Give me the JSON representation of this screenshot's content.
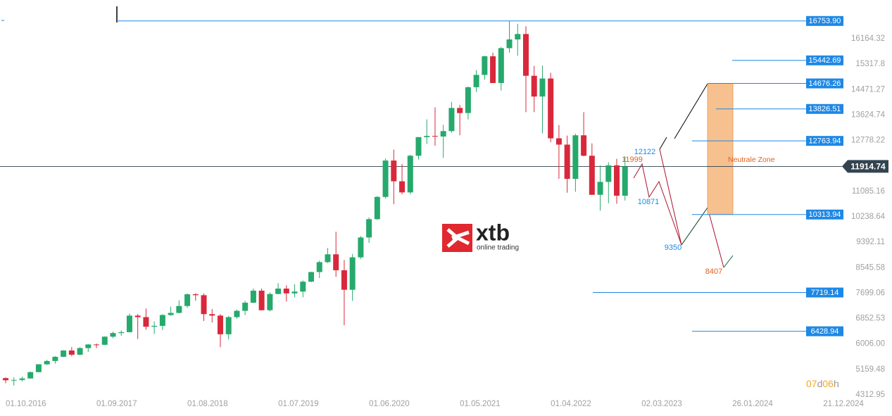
{
  "chart_data": {
    "type": "candlestick",
    "open": [
      4870,
      4800,
      4810,
      4860,
      5070,
      5330,
      5440,
      5580,
      5790,
      5650,
      5870,
      5990,
      5980,
      6250,
      6370,
      6400,
      6950,
      6900,
      6580,
      6610,
      6970,
      7040,
      7270,
      7660,
      7630,
      7000,
      6950,
      6330,
      6900,
      7110,
      7380,
      7780,
      7130,
      7670,
      7850,
      7690,
      7750,
      8080,
      8400,
      8730,
      8990,
      8460,
      7810,
      8890,
      9550,
      10160,
      10900,
      12110,
      11420,
      11050,
      12270,
      12890,
      12930,
      12910,
      13090,
      13860,
      13690,
      14550,
      14960,
      15580,
      14690,
      15850,
      16140,
      16320,
      14930,
      14240,
      14840,
      12850,
      12640,
      11500,
      12950,
      12270,
      10970,
      11400,
      11950,
      10940
    ],
    "high": [
      4900,
      4900,
      4920,
      5090,
      5340,
      5480,
      5600,
      5800,
      5900,
      5900,
      6000,
      6020,
      6260,
      6420,
      6460,
      7020,
      7000,
      7190,
      6760,
      7000,
      7250,
      7460,
      7690,
      7700,
      7690,
      7170,
      7000,
      6940,
      7150,
      7440,
      7850,
      7850,
      7720,
      8030,
      7960,
      7990,
      8120,
      8410,
      8780,
      9200,
      9740,
      8800,
      9000,
      9600,
      10220,
      10930,
      12180,
      12470,
      12000,
      12300,
      12890,
      13480,
      13880,
      13300,
      14060,
      13960,
      14570,
      15120,
      15600,
      15700,
      15890,
      16760,
      16660,
      16580,
      15260,
      15270,
      15030,
      13290,
      12940,
      13000,
      13720,
      12680,
      11950,
      12050,
      12170,
      12250
    ],
    "low": [
      4700,
      4620,
      4760,
      4850,
      5060,
      5310,
      5350,
      5570,
      5600,
      5630,
      5740,
      5870,
      5970,
      6200,
      6280,
      6390,
      6170,
      6480,
      6340,
      6470,
      6940,
      7020,
      7210,
      7450,
      6770,
      6720,
      5900,
      6160,
      6850,
      6970,
      7370,
      7120,
      7090,
      7660,
      7420,
      7560,
      7560,
      8060,
      8200,
      8700,
      8240,
      6630,
      7440,
      8830,
      9370,
      10130,
      10850,
      10660,
      10990,
      10990,
      12140,
      12660,
      12600,
      12200,
      13040,
      12950,
      13480,
      14390,
      14800,
      14690,
      14440,
      15700,
      15600,
      13720,
      13720,
      13020,
      12720,
      11500,
      11040,
      11070,
      12250,
      10970,
      10440,
      10690,
      10670,
      10780
    ],
    "close": [
      4800,
      4810,
      4860,
      5070,
      5330,
      5440,
      5580,
      5790,
      5650,
      5870,
      5990,
      5980,
      6250,
      6370,
      6400,
      6950,
      6900,
      6580,
      6610,
      6970,
      7040,
      7270,
      7660,
      7630,
      7000,
      6950,
      6330,
      6900,
      7110,
      7380,
      7780,
      7130,
      7670,
      7850,
      7690,
      7750,
      8080,
      8400,
      8730,
      8990,
      8460,
      7810,
      8890,
      9550,
      10160,
      10900,
      12110,
      11420,
      11050,
      12270,
      12890,
      12930,
      12910,
      13090,
      13860,
      13690,
      14550,
      14960,
      15580,
      14690,
      15850,
      16140,
      16320,
      14930,
      14240,
      14840,
      12850,
      12640,
      11500,
      12950,
      12270,
      10970,
      11400,
      11950,
      10940,
      11910
    ],
    "up_color": "#26a96c",
    "down_color": "#d9283b",
    "ylim": [
      3610,
      17452
    ],
    "yticks": [
      16164.32,
      15317.8,
      14471.27,
      13624.74,
      12778.22,
      11085.16,
      10238.64,
      9392.11,
      8545.58,
      7699.06,
      6852.53,
      {
        "value": 6006,
        "label": "6006.00"
      },
      5159.48,
      4312.95
    ],
    "xticks": [
      {
        "value": 0,
        "label": "01.10.2016"
      },
      {
        "value": 11,
        "label": "01.09.2017"
      },
      {
        "value": 22,
        "label": "01.08.2018"
      },
      {
        "value": 33,
        "label": "01.07.2019"
      },
      {
        "value": 44,
        "label": "01.06.2020"
      },
      {
        "value": 55,
        "label": "01.05.2021"
      },
      {
        "value": 66,
        "label": "01.04.2022"
      },
      {
        "value": 77,
        "label": "02.03.2023"
      },
      {
        "value": 88,
        "label": "26.01.2024"
      },
      {
        "value": 99,
        "label": "21.12.2024"
      }
    ],
    "levels": [
      {
        "value": 16753.9,
        "label": "16753.90"
      },
      15442.69,
      14676.26,
      13826.51,
      12763.94,
      10313.94,
      7719.14,
      6428.94
    ],
    "level_color": "#1e88e5",
    "current_price": 11914.74,
    "zone": {
      "label": "Neutrale Zone",
      "top": 14676.26,
      "bottom": 10313.94,
      "color": "#f7c08f"
    },
    "annotations": [
      {
        "text": "12122",
        "color": "#1e88e5"
      },
      {
        "text": "11999",
        "color": "#e0601b"
      },
      {
        "text": "10871",
        "color": "#1e88e5"
      },
      {
        "text": "9350",
        "color": "#1e88e5"
      },
      {
        "text": "8407",
        "color": "#e0601b"
      }
    ],
    "countdown": {
      "days": "07",
      "d": "d",
      "hours": "06",
      "h": "h"
    }
  },
  "logo": {
    "name": "xtb",
    "tagline": "online trading"
  }
}
